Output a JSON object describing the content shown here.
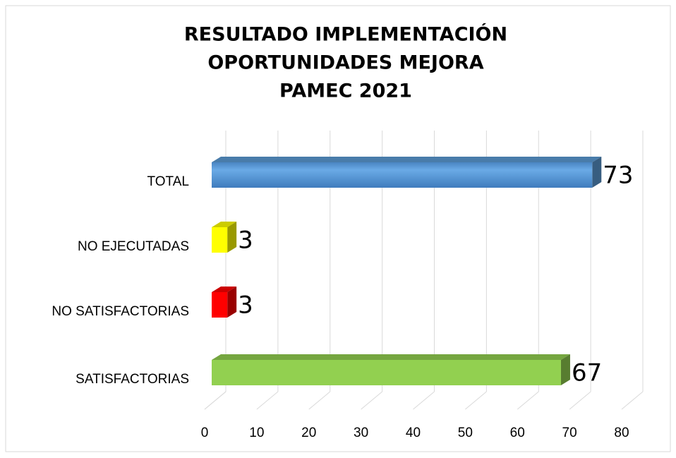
{
  "chart_data": {
    "type": "bar3d-horizontal",
    "title": [
      "RESULTADO IMPLEMENTACIÓN",
      "OPORTUNIDADES MEJORA",
      "PAMEC 2021"
    ],
    "categories": [
      "TOTAL",
      "NO EJECUTADAS",
      "NO SATISFACTORIAS",
      "SATISFACTORIAS"
    ],
    "values": [
      73,
      3,
      3,
      67
    ],
    "colors": [
      "#5b9bd5",
      "#ffff00",
      "#ff0000",
      "#92d050"
    ],
    "xlim": [
      0,
      80
    ],
    "xticks": [
      0,
      10,
      20,
      30,
      40,
      50,
      60,
      70,
      80
    ],
    "grid": true
  }
}
